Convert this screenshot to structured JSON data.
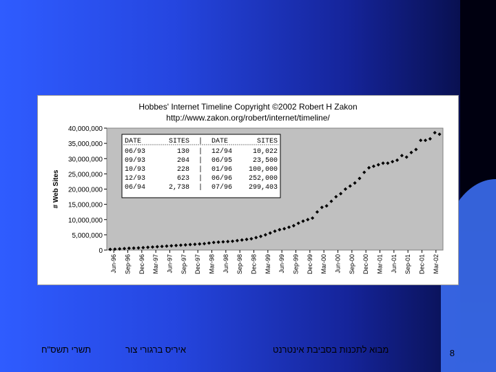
{
  "footer": {
    "date": "תשרי תשס\"ח",
    "author": "איריס ברגורי צור",
    "course": "מבוא לתכנות בסביבת אינטרנט",
    "page": "8"
  },
  "chart_data": {
    "type": "scatter",
    "title": "Hobbes' Internet Timeline Copyright ©2002 Robert H Zakon",
    "subtitle": "http://www.zakon.org/robert/internet/timeline/",
    "ylabel": "# Web Sites",
    "ylim": [
      0,
      40000000
    ],
    "yticks": [
      "0",
      "5,000,000",
      "10,000,000",
      "15,000,000",
      "20,000,000",
      "25,000,000",
      "30,000,000",
      "35,000,000",
      "40,000,000"
    ],
    "xticks": [
      "Jun-96",
      "Sep-96",
      "Dec-96",
      "Mar-97",
      "Jun-97",
      "Sep-97",
      "Dec-97",
      "Mar-98",
      "Jun-98",
      "Sep-98",
      "Dec-98",
      "Mar-99",
      "Jun-99",
      "Sep-99",
      "Dec-99",
      "Mar-00",
      "Jun-00",
      "Sep-00",
      "Dec-00",
      "Mar-01",
      "Jun-01",
      "Sep-01",
      "Dec-01",
      "Mar-02"
    ],
    "values": [
      230000,
      299403,
      400000,
      500000,
      603367,
      650000,
      700000,
      800000,
      900000,
      1000000,
      1100000,
      1200000,
      1300000,
      1400000,
      1500000,
      1600000,
      1700000,
      1800000,
      1900000,
      2000000,
      2100000,
      2300000,
      2500000,
      2600000,
      2700000,
      2800000,
      2900000,
      3100000,
      3300000,
      3500000,
      3700000,
      4100000,
      4500000,
      5000000,
      5600000,
      6200000,
      6700000,
      7000000,
      7500000,
      8000000,
      8800000,
      9500000,
      10000000,
      10500000,
      12500000,
      14000000,
      14500000,
      16000000,
      17500000,
      18500000,
      20000000,
      21000000,
      22000000,
      23500000,
      25500000,
      27000000,
      27500000,
      28000000,
      28500000,
      28500000,
      29000000,
      29500000,
      31000000,
      30500000,
      32000000,
      33000000,
      36000000,
      36000000,
      36500000,
      38500000,
      38000000
    ],
    "grid": false,
    "background": "#c0c0c0",
    "marker_color": "#000000",
    "table": {
      "headers": [
        "DATE",
        "SITES",
        "DATE",
        "SITES"
      ],
      "rows": [
        [
          "06/93",
          "130",
          "12/94",
          "10,022"
        ],
        [
          "09/93",
          "204",
          "06/95",
          "23,500"
        ],
        [
          "10/93",
          "228",
          "01/96",
          "100,000"
        ],
        [
          "12/93",
          "623",
          "06/96",
          "252,000"
        ],
        [
          "06/94",
          "2,738",
          "07/96",
          "299,403"
        ]
      ]
    }
  }
}
